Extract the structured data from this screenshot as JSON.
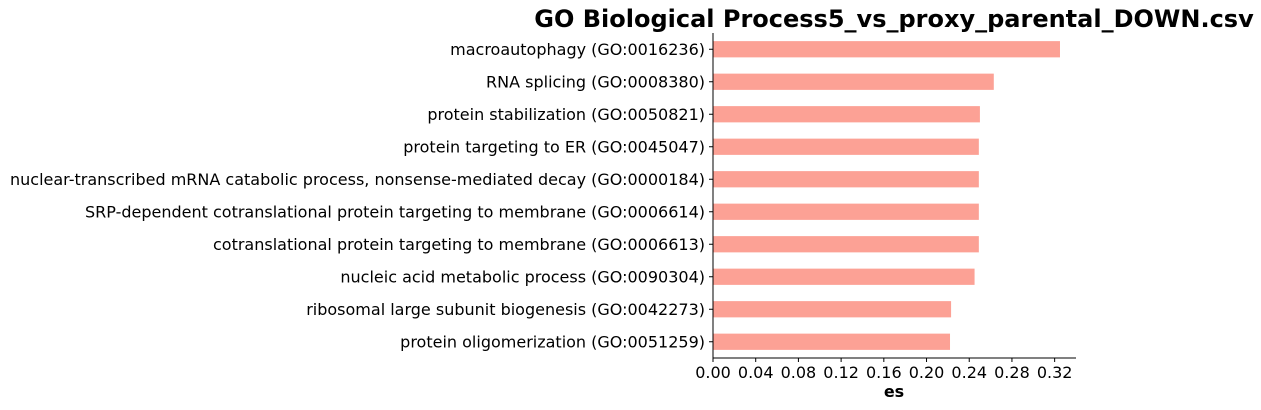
{
  "chart_data": {
    "type": "bar",
    "orientation": "horizontal",
    "title": "GO Biological Process5_vs_proxy_parental_DOWN.csv",
    "xlabel": "es",
    "ylabel": "",
    "xlim": [
      0,
      0.34
    ],
    "xticks": [
      0.0,
      0.04,
      0.08,
      0.12,
      0.16,
      0.2,
      0.24,
      0.28,
      0.32
    ],
    "xtick_labels": [
      "0.00",
      "0.04",
      "0.08",
      "0.12",
      "0.16",
      "0.20",
      "0.24",
      "0.28",
      "0.32"
    ],
    "grid": false,
    "legend": "none",
    "bar_color": "#fca195",
    "categories": [
      "macroautophagy (GO:0016236)",
      "RNA splicing (GO:0008380)",
      "protein stabilization (GO:0050821)",
      "protein targeting to ER (GO:0045047)",
      "nuclear-transcribed mRNA catabolic process, nonsense-mediated decay (GO:0000184)",
      "SRP-dependent cotranslational protein targeting to membrane (GO:0006614)",
      "cotranslational protein targeting to membrane (GO:0006613)",
      "nucleic acid metabolic process (GO:0090304)",
      "ribosomal large subunit biogenesis (GO:0042273)",
      "protein oligomerization (GO:0051259)"
    ],
    "values": [
      0.325,
      0.263,
      0.25,
      0.249,
      0.249,
      0.249,
      0.249,
      0.245,
      0.223,
      0.222
    ]
  }
}
